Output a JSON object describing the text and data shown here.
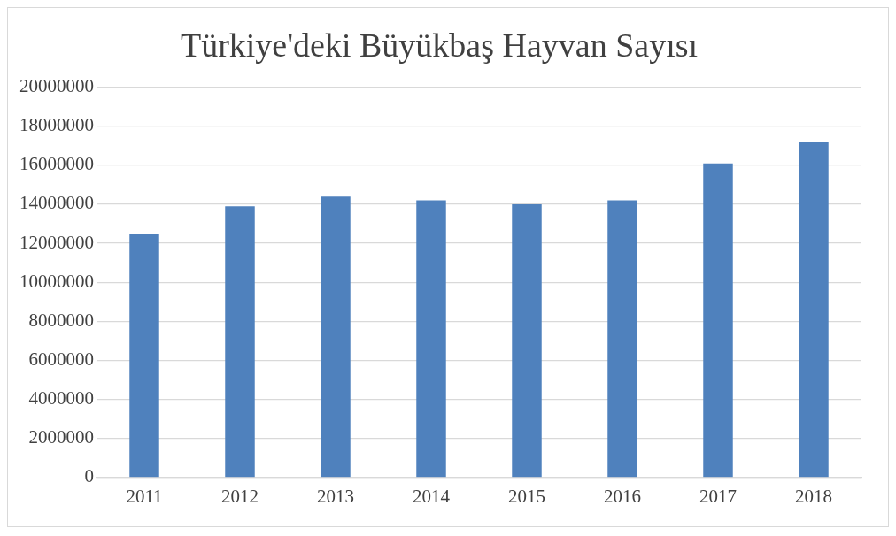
{
  "chart_data": {
    "type": "bar",
    "title": "Türkiye'deki Büyükbaş Hayvan Sayısı",
    "categories": [
      "2011",
      "2012",
      "2013",
      "2014",
      "2015",
      "2016",
      "2017",
      "2018"
    ],
    "values": [
      12500000,
      13900000,
      14400000,
      14200000,
      14000000,
      14200000,
      16100000,
      17200000
    ],
    "color": "#4f81bd",
    "ylim": [
      0,
      20000000
    ],
    "yticks": [
      0,
      2000000,
      4000000,
      6000000,
      8000000,
      10000000,
      12000000,
      14000000,
      16000000,
      18000000,
      20000000
    ],
    "grid": "y",
    "legend": false
  }
}
